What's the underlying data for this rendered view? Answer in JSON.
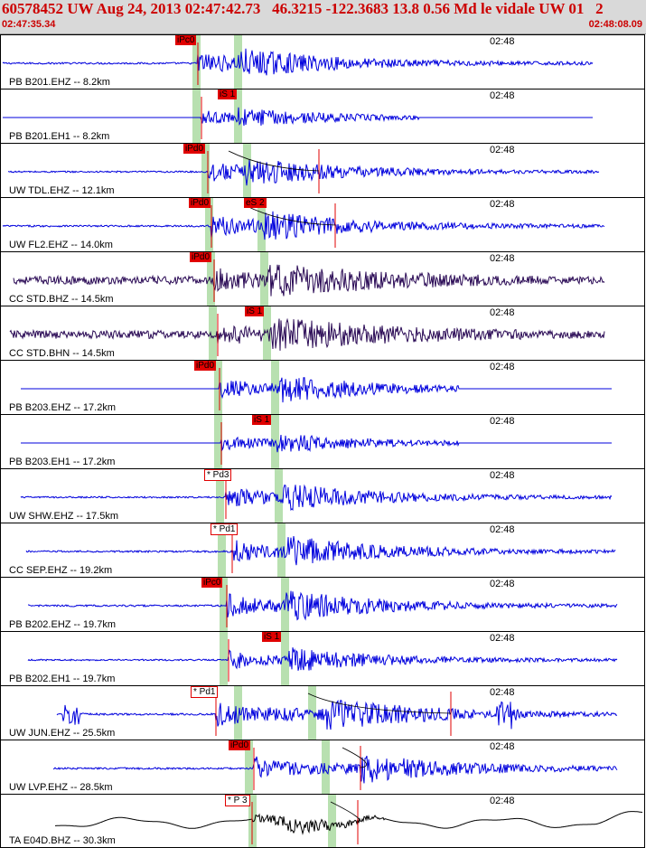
{
  "header": {
    "title": "60578452 UW Aug 24, 2013 02:47:42.73   46.3215 -122.3683 13.8 0.56 Md le vidale UW 01   2",
    "start_time": "02:47:35.34",
    "end_time": "02:48:08.09"
  },
  "tick_label": "02:48",
  "colors": {
    "trace_blue": "#0000dd",
    "trace_purple": "#2a0a55",
    "pick_red": "#e00000",
    "window_green": "#b8e0b0"
  },
  "traces": [
    {
      "label": "PB B201.EHZ -- 8.2km",
      "color": "blue",
      "amp": 0.55,
      "pick": {
        "text": "iPc0",
        "style": "red"
      }
    },
    {
      "label": "PB B201.EH1 -- 8.2km",
      "color": "blue",
      "amp": 0.35,
      "pick": {
        "text": "iS 1",
        "style": "red"
      }
    },
    {
      "label": "UW TDL.EHZ -- 12.1km",
      "color": "blue",
      "amp": 0.5,
      "pick": {
        "text": "iPd0",
        "style": "red"
      }
    },
    {
      "label": "UW FL2.EHZ -- 14.0km",
      "color": "blue",
      "amp": 0.55,
      "pick": {
        "text": "iPd0",
        "style": "red"
      },
      "pick2": {
        "text": "eS 2",
        "style": "red"
      }
    },
    {
      "label": "CC STD.BHZ -- 14.5km",
      "color": "purple",
      "amp": 0.6,
      "pick": {
        "text": "iPd0",
        "style": "red"
      }
    },
    {
      "label": "CC STD.BHN -- 14.5km",
      "color": "purple",
      "amp": 0.6,
      "pick": {
        "text": "iS 1",
        "style": "red"
      }
    },
    {
      "label": "PB B203.EHZ -- 17.2km",
      "color": "blue",
      "amp": 0.5,
      "pick": {
        "text": "iPd0",
        "style": "red"
      }
    },
    {
      "label": "PB B203.EH1 -- 17.2km",
      "color": "blue",
      "amp": 0.35,
      "pick": {
        "text": "iS 1",
        "style": "red"
      }
    },
    {
      "label": "UW SHW.EHZ -- 17.5km",
      "color": "blue",
      "amp": 0.5,
      "pick": {
        "text": "* Pd3",
        "style": "outline"
      }
    },
    {
      "label": "CC SEP.EHZ -- 19.2km",
      "color": "blue",
      "amp": 0.55,
      "pick": {
        "text": "* Pd1",
        "style": "outline"
      }
    },
    {
      "label": "PB B202.EHZ -- 19.7km",
      "color": "blue",
      "amp": 0.55,
      "pick": {
        "text": "iPc0",
        "style": "red"
      }
    },
    {
      "label": "PB B202.EH1 -- 19.7km",
      "color": "blue",
      "amp": 0.45,
      "pick": {
        "text": "iS 1",
        "style": "red"
      }
    },
    {
      "label": "UW JUN.EHZ -- 25.5km",
      "color": "blue",
      "amp": 0.6,
      "pick": {
        "text": "* Pd1",
        "style": "outline"
      }
    },
    {
      "label": "UW LVP.EHZ -- 28.5km",
      "color": "blue",
      "amp": 0.55,
      "pick": {
        "text": "iPd0",
        "style": "red"
      }
    },
    {
      "label": "TA E04D.BHZ -- 30.3km",
      "color": "black",
      "amp": 0.45,
      "pick": {
        "text": "* P 3",
        "style": "outline"
      }
    }
  ]
}
